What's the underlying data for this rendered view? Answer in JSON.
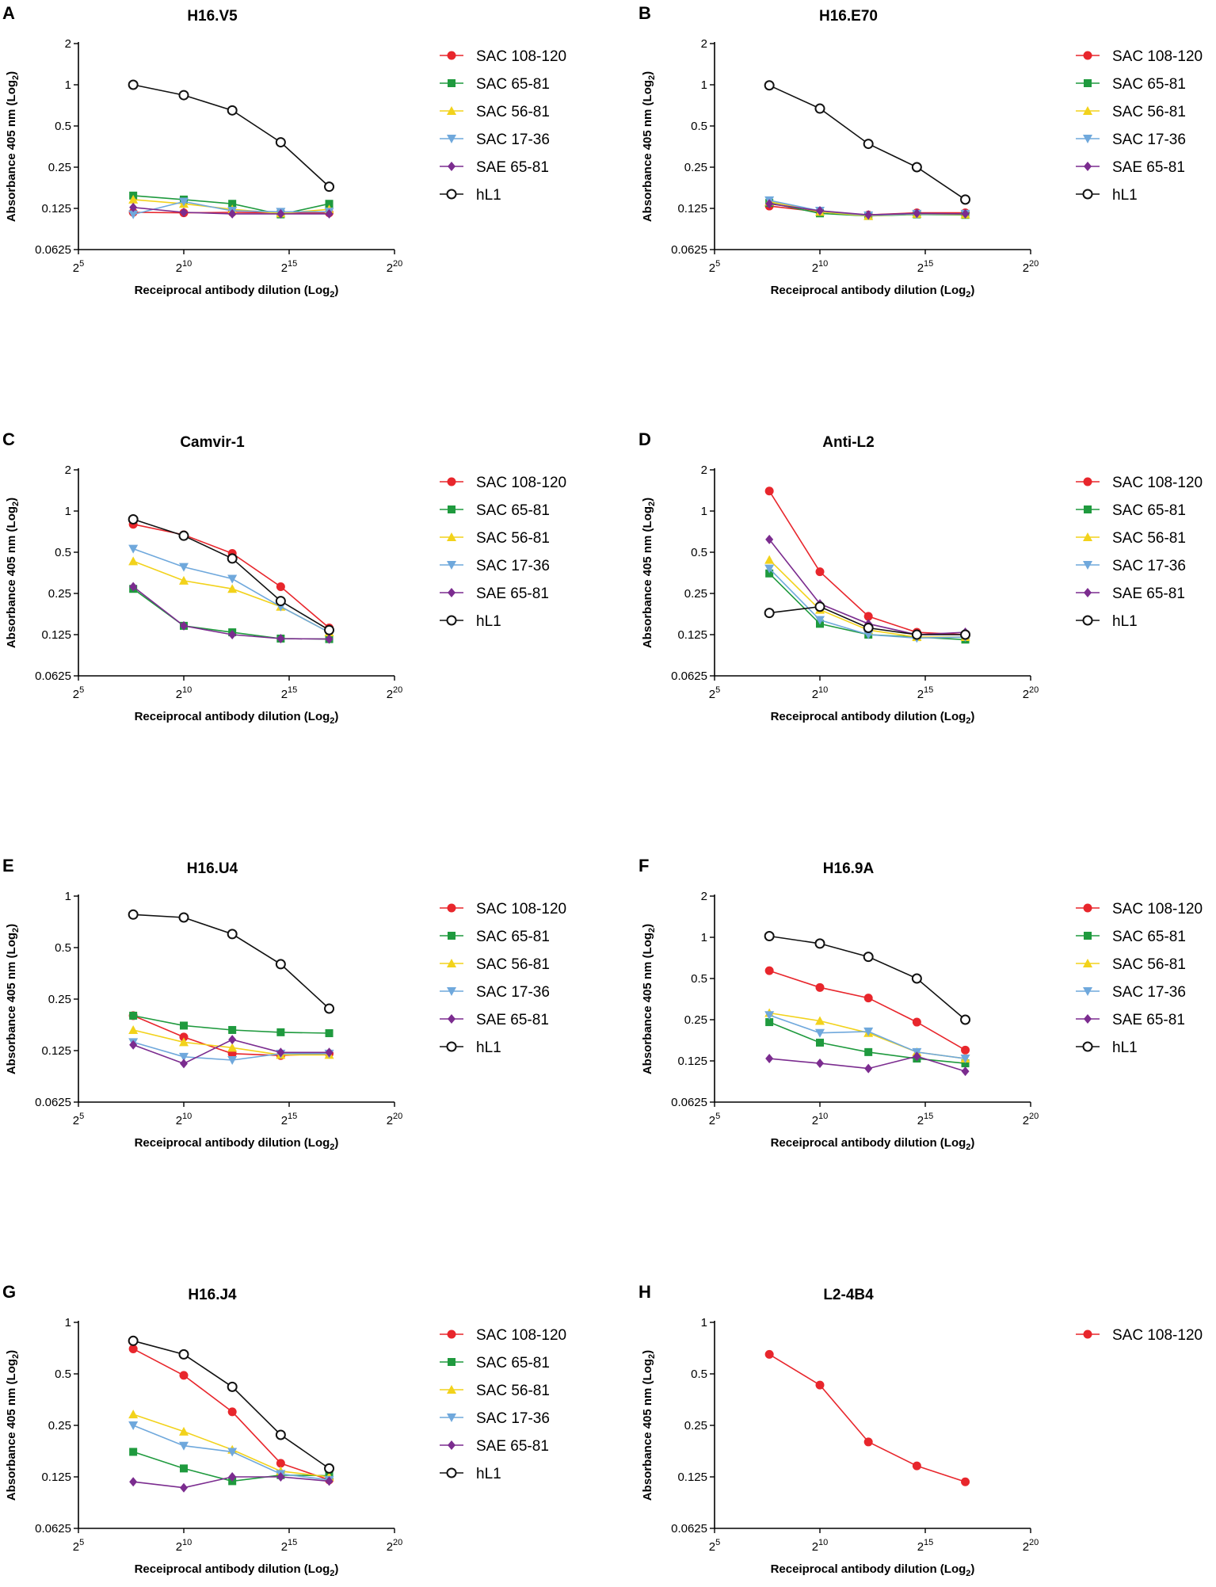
{
  "colors": {
    "SAC 108-120": "#e8262c",
    "SAC 65-81": "#1f9a3e",
    "SAC 56-81": "#f2d21b",
    "SAC 17-36": "#6fa8dc",
    "SAE 65-81": "#7b2c8f",
    "hL1": "#111111"
  },
  "markers": {
    "SAC 108-120": "circle",
    "SAC 65-81": "square",
    "SAC 56-81": "triangle-up",
    "SAC 17-36": "triangle-down",
    "SAE 65-81": "diamond",
    "hL1": "open-circle"
  },
  "chart_data": [
    {
      "panel": "A",
      "type": "line",
      "title": "H16.V5",
      "xlabel": "Receiprocal antibody dilution (Log",
      "xlabel_sub": "2",
      "xlabel_end": ")",
      "ylabel": "Absorbance 405 nm (Log",
      "ylabel_sub": "2",
      "ylabel_end": ")",
      "xlim_log2": [
        5,
        20
      ],
      "xticks": [
        {
          "base": "2",
          "exp": "5"
        },
        {
          "base": "2",
          "exp": "10"
        },
        {
          "base": "2",
          "exp": "15"
        },
        {
          "base": "2",
          "exp": "20"
        }
      ],
      "ylim": [
        0.0625,
        2
      ],
      "yticks": [
        "2",
        "1",
        "0.5",
        "0.25",
        "0.125",
        "0.0625"
      ],
      "x_log2": [
        7.6,
        10,
        12.3,
        14.6,
        16.9
      ],
      "series": [
        {
          "name": "SAC 108-120",
          "values": [
            0.117,
            0.116,
            0.117,
            0.116,
            0.116
          ]
        },
        {
          "name": "SAC 65-81",
          "values": [
            0.155,
            0.145,
            0.135,
            0.113,
            0.135
          ]
        },
        {
          "name": "SAC 56-81",
          "values": [
            0.145,
            0.135,
            0.123,
            0.115,
            0.123
          ]
        },
        {
          "name": "SAC 17-36",
          "values": [
            0.113,
            0.14,
            0.12,
            0.118,
            0.118
          ]
        },
        {
          "name": "SAE 65-81",
          "values": [
            0.127,
            0.117,
            0.114,
            0.114,
            0.114
          ]
        },
        {
          "name": "hL1",
          "values": [
            1.0,
            0.84,
            0.65,
            0.38,
            0.18
          ]
        }
      ],
      "legend": [
        "SAC 108-120",
        "SAC 65-81",
        "SAC 56-81",
        "SAC 17-36",
        "SAE 65-81",
        "hL1"
      ]
    },
    {
      "panel": "B",
      "type": "line",
      "title": "H16.E70",
      "xlabel": "Receiprocal antibody dilution (Log",
      "xlabel_sub": "2",
      "xlabel_end": ")",
      "ylabel": "Absorbance 405 nm (Log",
      "ylabel_sub": "2",
      "ylabel_end": ")",
      "xlim_log2": [
        5,
        20
      ],
      "xticks": [
        {
          "base": "2",
          "exp": "5"
        },
        {
          "base": "2",
          "exp": "10"
        },
        {
          "base": "2",
          "exp": "15"
        },
        {
          "base": "2",
          "exp": "20"
        }
      ],
      "ylim": [
        0.0625,
        2
      ],
      "yticks": [
        "2",
        "1",
        "0.5",
        "0.25",
        "0.125",
        "0.0625"
      ],
      "x_log2": [
        7.6,
        10,
        12.3,
        14.6,
        16.9
      ],
      "series": [
        {
          "name": "SAC 108-120",
          "values": [
            0.13,
            0.118,
            0.112,
            0.116,
            0.116
          ]
        },
        {
          "name": "SAC 65-81",
          "values": [
            0.137,
            0.115,
            0.11,
            0.113,
            0.112
          ]
        },
        {
          "name": "SAC 56-81",
          "values": [
            0.14,
            0.118,
            0.11,
            0.114,
            0.113
          ]
        },
        {
          "name": "SAC 17-36",
          "values": [
            0.143,
            0.12,
            0.111,
            0.114,
            0.114
          ]
        },
        {
          "name": "SAE 65-81",
          "values": [
            0.135,
            0.12,
            0.112,
            0.115,
            0.114
          ]
        },
        {
          "name": "hL1",
          "values": [
            0.99,
            0.67,
            0.37,
            0.25,
            0.145
          ]
        }
      ],
      "legend": [
        "SAC 108-120",
        "SAC 65-81",
        "SAC 56-81",
        "SAC 17-36",
        "SAE 65-81",
        "hL1"
      ]
    },
    {
      "panel": "C",
      "type": "line",
      "title": "Camvir-1",
      "xlabel": "Receiprocal antibody dilution (Log",
      "xlabel_sub": "2",
      "xlabel_end": ")",
      "ylabel": "Absorbance 405 nm (Log",
      "ylabel_sub": "2",
      "ylabel_end": ")",
      "xlim_log2": [
        5,
        20
      ],
      "xticks": [
        {
          "base": "2",
          "exp": "5"
        },
        {
          "base": "2",
          "exp": "10"
        },
        {
          "base": "2",
          "exp": "15"
        },
        {
          "base": "2",
          "exp": "20"
        }
      ],
      "ylim": [
        0.0625,
        2
      ],
      "yticks": [
        "2",
        "1",
        "0.5",
        "0.25",
        "0.125",
        "0.0625"
      ],
      "x_log2": [
        7.6,
        10,
        12.3,
        14.6,
        16.9
      ],
      "series": [
        {
          "name": "SAC 108-120",
          "values": [
            0.8,
            0.67,
            0.49,
            0.28,
            0.14
          ]
        },
        {
          "name": "SAC 65-81",
          "values": [
            0.27,
            0.145,
            0.13,
            0.117,
            0.116
          ]
        },
        {
          "name": "SAC 56-81",
          "values": [
            0.43,
            0.31,
            0.27,
            0.2,
            0.13
          ]
        },
        {
          "name": "SAC 17-36",
          "values": [
            0.53,
            0.39,
            0.32,
            0.2,
            0.13
          ]
        },
        {
          "name": "SAE 65-81",
          "values": [
            0.28,
            0.145,
            0.125,
            0.117,
            0.116
          ]
        },
        {
          "name": "hL1",
          "values": [
            0.87,
            0.66,
            0.45,
            0.22,
            0.135
          ]
        }
      ],
      "legend": [
        "SAC 108-120",
        "SAC 65-81",
        "SAC 56-81",
        "SAC 17-36",
        "SAE 65-81",
        "hL1"
      ]
    },
    {
      "panel": "D",
      "type": "line",
      "title": "Anti-L2",
      "xlabel": "Receiprocal antibody dilution (Log",
      "xlabel_sub": "2",
      "xlabel_end": ")",
      "ylabel": "Absorbance 405 nm (Log",
      "ylabel_sub": "2",
      "ylabel_end": ")",
      "xlim_log2": [
        5,
        20
      ],
      "xticks": [
        {
          "base": "2",
          "exp": "5"
        },
        {
          "base": "2",
          "exp": "10"
        },
        {
          "base": "2",
          "exp": "15"
        },
        {
          "base": "2",
          "exp": "20"
        }
      ],
      "ylim": [
        0.0625,
        2
      ],
      "yticks": [
        "2",
        "1",
        "0.5",
        "0.25",
        "0.125",
        "0.0625"
      ],
      "x_log2": [
        7.6,
        10,
        12.3,
        14.6,
        16.9
      ],
      "series": [
        {
          "name": "SAC 108-120",
          "values": [
            1.4,
            0.36,
            0.17,
            0.13,
            0.125
          ]
        },
        {
          "name": "SAC 65-81",
          "values": [
            0.35,
            0.15,
            0.125,
            0.12,
            0.115
          ]
        },
        {
          "name": "SAC 56-81",
          "values": [
            0.44,
            0.19,
            0.135,
            0.12,
            0.12
          ]
        },
        {
          "name": "SAC 17-36",
          "values": [
            0.38,
            0.16,
            0.125,
            0.118,
            0.12
          ]
        },
        {
          "name": "SAE 65-81",
          "values": [
            0.62,
            0.21,
            0.15,
            0.125,
            0.13
          ]
        },
        {
          "name": "hL1",
          "values": [
            0.18,
            0.2,
            0.14,
            0.125,
            0.125
          ]
        }
      ],
      "legend": [
        "SAC 108-120",
        "SAC 65-81",
        "SAC 56-81",
        "SAC 17-36",
        "SAE 65-81",
        "hL1"
      ]
    },
    {
      "panel": "E",
      "type": "line",
      "title": "H16.U4",
      "xlabel": "Receiprocal antibody dilution (Log",
      "xlabel_sub": "2",
      "xlabel_end": ")",
      "ylabel": "Absorbance 405 nm (Log",
      "ylabel_sub": "2",
      "ylabel_end": ")",
      "xlim_log2": [
        5,
        20
      ],
      "xticks": [
        {
          "base": "2",
          "exp": "5"
        },
        {
          "base": "2",
          "exp": "10"
        },
        {
          "base": "2",
          "exp": "15"
        },
        {
          "base": "2",
          "exp": "20"
        }
      ],
      "ylim": [
        0.0625,
        1
      ],
      "yticks": [
        "1",
        "0.5",
        "0.25",
        "0.125",
        "0.0625"
      ],
      "x_log2": [
        7.6,
        10,
        12.3,
        14.6,
        16.9
      ],
      "series": [
        {
          "name": "SAC 108-120",
          "values": [
            0.2,
            0.15,
            0.12,
            0.117,
            0.12
          ]
        },
        {
          "name": "SAC 65-81",
          "values": [
            0.2,
            0.175,
            0.165,
            0.16,
            0.158
          ]
        },
        {
          "name": "SAC 56-81",
          "values": [
            0.165,
            0.14,
            0.13,
            0.118,
            0.118
          ]
        },
        {
          "name": "SAC 17-36",
          "values": [
            0.14,
            0.115,
            0.11,
            0.12,
            0.12
          ]
        },
        {
          "name": "SAE 65-81",
          "values": [
            0.135,
            0.105,
            0.145,
            0.122,
            0.122
          ]
        },
        {
          "name": "hL1",
          "values": [
            0.78,
            0.75,
            0.6,
            0.4,
            0.22
          ]
        }
      ],
      "legend": [
        "SAC 108-120",
        "SAC 65-81",
        "SAC 56-81",
        "SAC 17-36",
        "SAE 65-81",
        "hL1"
      ]
    },
    {
      "panel": "F",
      "type": "line",
      "title": "H16.9A",
      "xlabel": "Receiprocal antibody dilution (Log",
      "xlabel_sub": "2",
      "xlabel_end": ")",
      "ylabel": "Absorbance 405 nm (Log",
      "ylabel_sub": "2",
      "ylabel_end": ")",
      "xlim_log2": [
        5,
        20
      ],
      "xticks": [
        {
          "base": "2",
          "exp": "5"
        },
        {
          "base": "2",
          "exp": "10"
        },
        {
          "base": "2",
          "exp": "15"
        },
        {
          "base": "2",
          "exp": "20"
        }
      ],
      "ylim": [
        0.0625,
        2
      ],
      "yticks": [
        "2",
        "1",
        "0.5",
        "0.25",
        "0.125",
        "0.0625"
      ],
      "x_log2": [
        7.6,
        10,
        12.3,
        14.6,
        16.9
      ],
      "series": [
        {
          "name": "SAC 108-120",
          "values": [
            0.57,
            0.43,
            0.36,
            0.24,
            0.15
          ]
        },
        {
          "name": "SAC 65-81",
          "values": [
            0.24,
            0.17,
            0.145,
            0.13,
            0.12
          ]
        },
        {
          "name": "SAC 56-81",
          "values": [
            0.28,
            0.245,
            0.2,
            0.145,
            0.13
          ]
        },
        {
          "name": "SAC 17-36",
          "values": [
            0.27,
            0.2,
            0.205,
            0.145,
            0.13
          ]
        },
        {
          "name": "SAE 65-81",
          "values": [
            0.13,
            0.12,
            0.11,
            0.135,
            0.105
          ]
        },
        {
          "name": "hL1",
          "values": [
            1.02,
            0.9,
            0.72,
            0.5,
            0.25
          ]
        }
      ],
      "legend": [
        "SAC 108-120",
        "SAC 65-81",
        "SAC 56-81",
        "SAC 17-36",
        "SAE 65-81",
        "hL1"
      ]
    },
    {
      "panel": "G",
      "type": "line",
      "title": "H16.J4",
      "xlabel": "Receiprocal antibody dilution (Log",
      "xlabel_sub": "2",
      "xlabel_end": ")",
      "ylabel": "Absorbance 405 nm (Log",
      "ylabel_sub": "2",
      "ylabel_end": ")",
      "xlim_log2": [
        5,
        20
      ],
      "xticks": [
        {
          "base": "2",
          "exp": "5"
        },
        {
          "base": "2",
          "exp": "10"
        },
        {
          "base": "2",
          "exp": "15"
        },
        {
          "base": "2",
          "exp": "20"
        }
      ],
      "ylim": [
        0.0625,
        1
      ],
      "yticks": [
        "1",
        "0.5",
        "0.25",
        "0.125",
        "0.0625"
      ],
      "x_log2": [
        7.6,
        10,
        12.3,
        14.6,
        16.9
      ],
      "series": [
        {
          "name": "SAC 108-120",
          "values": [
            0.7,
            0.49,
            0.3,
            0.15,
            0.12
          ]
        },
        {
          "name": "SAC 65-81",
          "values": [
            0.175,
            0.14,
            0.118,
            0.128,
            0.127
          ]
        },
        {
          "name": "SAC 56-81",
          "values": [
            0.29,
            0.23,
            0.18,
            0.135,
            0.125
          ]
        },
        {
          "name": "SAC 17-36",
          "values": [
            0.25,
            0.19,
            0.175,
            0.13,
            0.12
          ]
        },
        {
          "name": "SAE 65-81",
          "values": [
            0.117,
            0.108,
            0.125,
            0.125,
            0.118
          ]
        },
        {
          "name": "hL1",
          "values": [
            0.78,
            0.65,
            0.42,
            0.22,
            0.14
          ]
        }
      ],
      "legend": [
        "SAC 108-120",
        "SAC 65-81",
        "SAC 56-81",
        "SAC 17-36",
        "SAE 65-81",
        "hL1"
      ]
    },
    {
      "panel": "H",
      "type": "line",
      "title": "L2-4B4",
      "xlabel": "Receiprocal antibody dilution (Log",
      "xlabel_sub": "2",
      "xlabel_end": ")",
      "ylabel": "Absorbance 405 nm (Log",
      "ylabel_sub": "2",
      "ylabel_end": ")",
      "xlim_log2": [
        5,
        20
      ],
      "xticks": [
        {
          "base": "2",
          "exp": "5"
        },
        {
          "base": "2",
          "exp": "10"
        },
        {
          "base": "2",
          "exp": "15"
        },
        {
          "base": "2",
          "exp": "20"
        }
      ],
      "ylim": [
        0.0625,
        1
      ],
      "yticks": [
        "1",
        "0.5",
        "0.25",
        "0.125",
        "0.0625"
      ],
      "x_log2": [
        7.6,
        10,
        12.3,
        14.6,
        16.9
      ],
      "series": [
        {
          "name": "SAC 108-120",
          "values": [
            0.65,
            0.43,
            0.2,
            0.145,
            0.117
          ]
        }
      ],
      "legend": [
        "SAC 108-120"
      ]
    }
  ]
}
